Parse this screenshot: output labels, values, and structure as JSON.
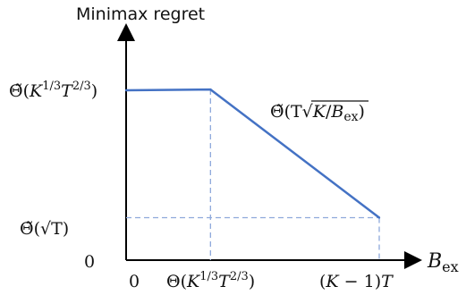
{
  "chart_data": {
    "type": "line",
    "title": "",
    "ylabel": "Minimax regret",
    "xlabel": {
      "base": "B",
      "sub": "ex"
    },
    "colors": {
      "line": "#4472C4",
      "axis": "#000000",
      "guide": "#8EA9DB"
    },
    "x_ticks": [
      {
        "value": 0,
        "label": "0"
      },
      {
        "value": 1,
        "label": "Θ(K^{1/3}T^{2/3})"
      },
      {
        "value": 3,
        "label": "(K − 1)T"
      }
    ],
    "y_ticks": [
      {
        "value": 0,
        "label": "0"
      },
      {
        "value": 1,
        "label": "Θ̃(√T)"
      },
      {
        "value": 4,
        "label": "Θ̃(K^{1/3}T^{2/3})"
      }
    ],
    "series": [
      {
        "x": [
          0,
          1,
          3
        ],
        "y": [
          4,
          4.02,
          1
        ]
      }
    ],
    "annotations": [
      {
        "text": "Θ̃(T√(K/B_ex))",
        "near_x": 2,
        "near_y": 3.5
      }
    ],
    "grid": false,
    "guides": "dashed"
  }
}
